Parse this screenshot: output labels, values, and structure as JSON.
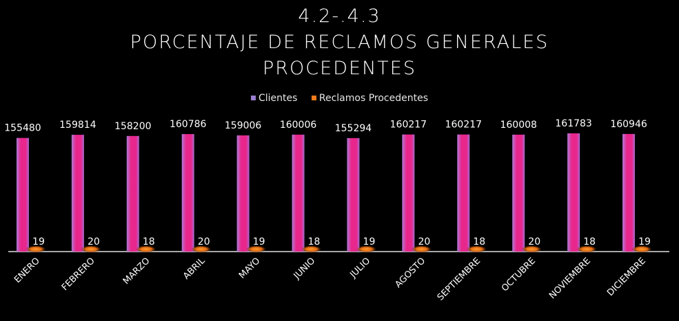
{
  "chart_data": {
    "type": "bar",
    "title_lines": [
      "4.2-.4.3",
      "PORCENTAJE DE RECLAMOS GENERALES",
      "PROCEDENTES"
    ],
    "categories": [
      "ENERO",
      "FEBRERO",
      "MARZO",
      "ABRIL",
      "MAYO",
      "JUNIO",
      "JULIO",
      "AGOSTO",
      "SEPTIEMBRE",
      "OCTUBRE",
      "NOVIEMBRE",
      "DICIEMBRE"
    ],
    "series": [
      {
        "name": "Clientes",
        "color": "#e8268c",
        "values": [
          155480,
          159814,
          158200,
          160786,
          159006,
          160006,
          155294,
          160217,
          160217,
          160008,
          161783,
          160946
        ]
      },
      {
        "name": "Reclamos Procedentes",
        "color": "#f07a1a",
        "values": [
          19,
          20,
          18,
          20,
          19,
          18,
          19,
          20,
          18,
          20,
          18,
          19
        ]
      }
    ],
    "legend_position": "top",
    "grid": false,
    "data_labels": true
  }
}
